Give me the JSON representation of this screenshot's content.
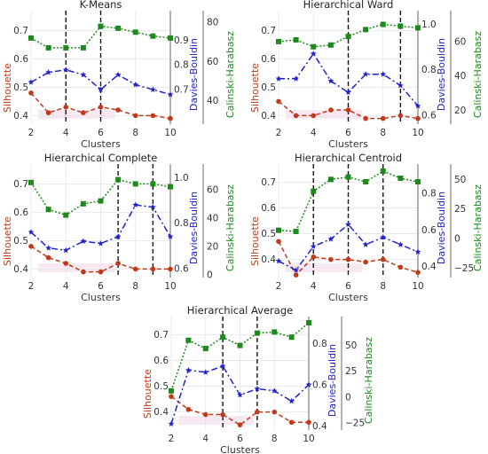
{
  "colors": {
    "silhouette": "#c0391b",
    "davies_bouldin": "#2222cc",
    "calinski_harabasz": "#1e8a1e",
    "vline": "#111111",
    "grid": "#e6e6e6",
    "band": "#f3d6e6"
  },
  "chart_data": [
    {
      "type": "line",
      "title": "K-Means",
      "xlabel": "Clusters",
      "x": [
        2,
        3,
        4,
        5,
        6,
        7,
        8,
        9,
        10
      ],
      "xticks": [
        2,
        4,
        6,
        8,
        10
      ],
      "xlim": [
        2,
        10
      ],
      "vlines": [
        4,
        6
      ],
      "axes": {
        "silhouette": {
          "label": "Silhouette",
          "ylim": [
            0.37,
            0.77
          ],
          "ticks": [
            0.4,
            0.5,
            0.6,
            0.7
          ],
          "tick_labels": [
            "0.4",
            "0.5",
            "0.6",
            "0.7"
          ]
        },
        "davies_bouldin": {
          "label": "Davies-Bouldin",
          "ylim": [
            0.56,
            1.02
          ],
          "ticks": [
            0.7,
            0.8,
            0.9
          ],
          "tick_labels": [
            "0.7",
            "0.8",
            "0.9"
          ]
        },
        "calinski_harabasz": {
          "label": "Calinski-Harabasz",
          "ylim": [
            28,
            86
          ],
          "ticks": [
            40,
            60,
            80
          ],
          "tick_labels": [
            "40",
            "60",
            "80"
          ]
        }
      },
      "series": [
        {
          "name": "Silhouette",
          "axis": "silhouette",
          "values": [
            0.48,
            0.41,
            0.43,
            0.41,
            0.43,
            0.42,
            0.4,
            0.4,
            0.39
          ]
        },
        {
          "name": "Davies-Bouldin",
          "axis": "davies_bouldin",
          "values": [
            0.73,
            0.77,
            0.78,
            0.76,
            0.7,
            0.76,
            0.72,
            0.7,
            0.68
          ]
        },
        {
          "name": "Calinski-Harabasz",
          "axis": "calinski_harabasz",
          "values": [
            72,
            67,
            67,
            67,
            78,
            77,
            75,
            73,
            72
          ]
        }
      ]
    },
    {
      "type": "line",
      "title": "Hierarchical Ward",
      "xlabel": "Clusters",
      "x": [
        2,
        3,
        4,
        5,
        6,
        7,
        8,
        9,
        10
      ],
      "xticks": [
        2,
        4,
        6,
        8,
        10
      ],
      "xlim": [
        2,
        10
      ],
      "vlines": [
        6,
        9
      ],
      "axes": {
        "silhouette": {
          "label": "Silhouette",
          "ylim": [
            0.37,
            0.77
          ],
          "ticks": [
            0.4,
            0.5,
            0.6,
            0.7
          ],
          "tick_labels": [
            "0.4",
            "0.5",
            "0.6",
            "0.7"
          ]
        },
        "davies_bouldin": {
          "label": "Davies-Bouldin",
          "ylim": [
            0.56,
            1.06
          ],
          "ticks": [
            0.6,
            0.8,
            1.0
          ],
          "tick_labels": [
            "0.6",
            "0.8",
            "1.0"
          ]
        },
        "calinski_harabasz": {
          "label": "Calinski-Harabasz",
          "ylim": [
            12,
            78
          ],
          "ticks": [
            20,
            40,
            60
          ],
          "tick_labels": [
            "20",
            "40",
            "60"
          ]
        }
      },
      "series": [
        {
          "name": "Silhouette",
          "axis": "silhouette",
          "values": [
            0.45,
            0.4,
            0.4,
            0.42,
            0.42,
            0.39,
            0.39,
            0.4,
            0.39
          ]
        },
        {
          "name": "Davies-Bouldin",
          "axis": "davies_bouldin",
          "values": [
            0.76,
            0.76,
            0.87,
            0.75,
            0.7,
            0.78,
            0.78,
            0.73,
            0.64
          ]
        },
        {
          "name": "Calinski-Harabasz",
          "axis": "calinski_harabasz",
          "values": [
            60,
            61,
            57,
            58,
            63,
            67,
            70,
            69,
            68
          ]
        }
      ]
    },
    {
      "type": "line",
      "title": "Hierarchical Complete",
      "xlabel": "Clusters",
      "x": [
        2,
        3,
        4,
        5,
        6,
        7,
        8,
        9,
        10
      ],
      "xticks": [
        2,
        4,
        6,
        8,
        10
      ],
      "xlim": [
        2,
        10
      ],
      "vlines": [
        7,
        9
      ],
      "axes": {
        "silhouette": {
          "label": "Silhouette",
          "ylim": [
            0.37,
            0.77
          ],
          "ticks": [
            0.4,
            0.5,
            0.6,
            0.7
          ],
          "tick_labels": [
            "0.4",
            "0.5",
            "0.6",
            "0.7"
          ]
        },
        "davies_bouldin": {
          "label": "Davies-Bouldin",
          "ylim": [
            0.56,
            1.06
          ],
          "ticks": [
            0.6,
            0.8,
            1.0
          ],
          "tick_labels": [
            "0.6",
            "0.8",
            "1.0"
          ]
        },
        "calinski_harabasz": {
          "label": "Calinski-Harabasz",
          "ylim": [
            -2,
            78
          ],
          "ticks": [
            0,
            20,
            40,
            60
          ],
          "tick_labels": [
            "0",
            "20",
            "40",
            "60"
          ]
        }
      },
      "series": [
        {
          "name": "Silhouette",
          "axis": "silhouette",
          "values": [
            0.48,
            0.44,
            0.42,
            0.39,
            0.39,
            0.42,
            0.4,
            0.4,
            0.4
          ]
        },
        {
          "name": "Davies-Bouldin",
          "axis": "davies_bouldin",
          "values": [
            0.76,
            0.69,
            0.68,
            0.72,
            0.71,
            0.74,
            0.88,
            0.87,
            0.74
          ]
        },
        {
          "name": "Calinski-Harabasz",
          "axis": "calinski_harabasz",
          "values": [
            65,
            46,
            42,
            50,
            52,
            67,
            64,
            64,
            62
          ]
        }
      ]
    },
    {
      "type": "line",
      "title": "Hierarchical Centroid",
      "xlabel": "Clusters",
      "x": [
        2,
        3,
        4,
        5,
        6,
        7,
        8,
        9,
        10
      ],
      "xticks": [
        2,
        4,
        6,
        8,
        10
      ],
      "xlim": [
        2,
        10
      ],
      "vlines": [
        4,
        6,
        8
      ],
      "axes": {
        "silhouette": {
          "label": "Silhouette",
          "ylim": [
            0.33,
            0.77
          ],
          "ticks": [
            0.4,
            0.5,
            0.6,
            0.7
          ],
          "tick_labels": [
            "0.4",
            "0.5",
            "0.6",
            "0.7"
          ]
        },
        "davies_bouldin": {
          "label": "Davies-Bouldin",
          "ylim": [
            0.34,
            0.96
          ],
          "ticks": [
            0.4,
            0.6,
            0.8
          ],
          "tick_labels": [
            "0.4",
            "0.6",
            "0.8"
          ]
        },
        "calinski_harabasz": {
          "label": "Calinski-Harabasz",
          "ylim": [
            -33,
            63
          ],
          "ticks": [
            -25,
            0,
            25,
            50
          ],
          "tick_labels": [
            "−25",
            "0",
            "25",
            "50"
          ]
        }
      },
      "series": [
        {
          "name": "Silhouette",
          "axis": "silhouette",
          "values": [
            0.47,
            0.34,
            0.41,
            0.4,
            0.4,
            0.39,
            0.4,
            0.37,
            0.35
          ]
        },
        {
          "name": "Davies-Bouldin",
          "axis": "davies_bouldin",
          "values": [
            0.43,
            0.38,
            0.51,
            0.55,
            0.63,
            0.52,
            0.56,
            0.52,
            0.48
          ]
        },
        {
          "name": "Calinski-Harabasz",
          "axis": "calinski_harabasz",
          "values": [
            7,
            6,
            40,
            50,
            52,
            48,
            57,
            51,
            48
          ]
        }
      ]
    },
    {
      "type": "line",
      "title": "Hierarchical Average",
      "xlabel": "Clusters",
      "x": [
        2,
        3,
        4,
        5,
        6,
        7,
        8,
        9,
        10
      ],
      "xticks": [
        2,
        4,
        6,
        8,
        10
      ],
      "xlim": [
        2,
        10
      ],
      "vlines": [
        5,
        7
      ],
      "axes": {
        "silhouette": {
          "label": "Silhouette",
          "ylim": [
            0.33,
            0.77
          ],
          "ticks": [
            0.4,
            0.5,
            0.6,
            0.7
          ],
          "tick_labels": [
            "0.4",
            "0.5",
            "0.6",
            "0.7"
          ]
        },
        "davies_bouldin": {
          "label": "Davies-Bouldin",
          "ylim": [
            0.38,
            0.93
          ],
          "ticks": [
            0.4,
            0.6,
            0.8
          ],
          "tick_labels": [
            "0.4",
            "0.6",
            "0.8"
          ]
        },
        "calinski_harabasz": {
          "label": "Calinski-Harabasz",
          "ylim": [
            -32,
            78
          ],
          "ticks": [
            -25,
            0,
            25,
            50
          ],
          "tick_labels": [
            "−25",
            "0",
            "25",
            "50"
          ]
        }
      },
      "series": [
        {
          "name": "Silhouette",
          "axis": "silhouette",
          "values": [
            0.46,
            0.41,
            0.39,
            0.39,
            0.35,
            0.4,
            0.4,
            0.36,
            0.36
          ]
        },
        {
          "name": "Davies-Bouldin",
          "axis": "davies_bouldin",
          "values": [
            0.41,
            0.67,
            0.66,
            0.69,
            0.55,
            0.58,
            0.57,
            0.52,
            0.6
          ]
        },
        {
          "name": "Calinski-Harabasz",
          "axis": "calinski_harabasz",
          "values": [
            6,
            55,
            47,
            58,
            50,
            62,
            63,
            58,
            72
          ]
        }
      ]
    }
  ]
}
